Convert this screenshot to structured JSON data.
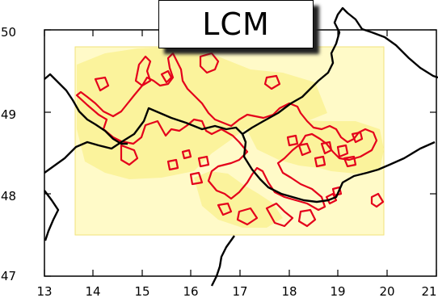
{
  "title": "LCM",
  "axes": {
    "x_ticks": [
      "13",
      "14",
      "15",
      "16",
      "17",
      "18",
      "19",
      "20",
      "21"
    ],
    "y_ticks": [
      "50",
      "49",
      "48",
      "47"
    ],
    "xlim": [
      13,
      21
    ],
    "ylim": [
      47,
      50
    ]
  },
  "colors": {
    "domain_fill": "#fffac8",
    "region_fill": "#fbf39c",
    "contour": "#e4001b",
    "border": "#000000"
  }
}
